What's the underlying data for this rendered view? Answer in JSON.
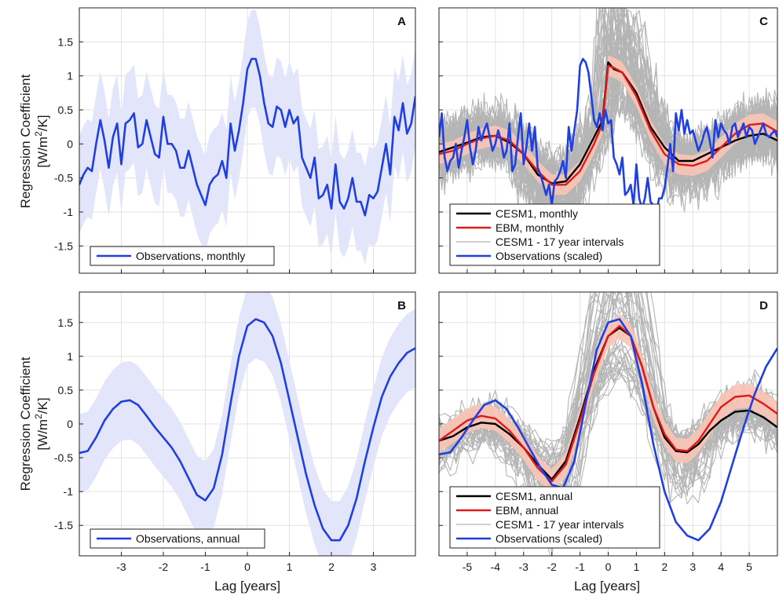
{
  "colors": {
    "observations": "#1f3fe0",
    "observations_band": "#e3e6fb",
    "cesm_mean": "#000000",
    "ebm": "#e01919",
    "ebm_band": "#fac4b6",
    "ensemble": "#b5b5b5",
    "grid": "#e2e2e2",
    "axis": "#222222"
  },
  "shared": {
    "ylabel_line1": "Regression Coefficient",
    "ylabel_line2_pre": "[W/m",
    "ylabel_line2_sup": "2",
    "ylabel_line2_post": "/K]",
    "xlabel": "Lag [years]"
  },
  "chart_data": [
    {
      "panel": "A",
      "type": "line",
      "xlim": [
        -4,
        4
      ],
      "ylim": [
        -1.9,
        2
      ],
      "xticks": [
        -3,
        -2,
        -1,
        0,
        1,
        2,
        3
      ],
      "yticks": [
        -1.5,
        -1,
        -0.5,
        0,
        0.5,
        1,
        1.5
      ],
      "grid": true,
      "legend_position": "bottom-left",
      "show_xticklabels": false,
      "show_yticklabels": true,
      "show_ylabel": true,
      "show_xlabel": false,
      "legend_entries": [
        {
          "label": "Observations, monthly",
          "color": "observations"
        }
      ],
      "observations": {
        "x": [
          -4.0,
          -3.9,
          -3.8,
          -3.7,
          -3.6,
          -3.5,
          -3.4,
          -3.3,
          -3.2,
          -3.1,
          -3.0,
          -2.9,
          -2.8,
          -2.7,
          -2.6,
          -2.5,
          -2.4,
          -2.3,
          -2.2,
          -2.1,
          -2.0,
          -1.9,
          -1.8,
          -1.7,
          -1.6,
          -1.5,
          -1.4,
          -1.3,
          -1.2,
          -1.1,
          -1.0,
          -0.9,
          -0.8,
          -0.7,
          -0.6,
          -0.5,
          -0.4,
          -0.3,
          -0.2,
          -0.1,
          0.0,
          0.1,
          0.2,
          0.3,
          0.4,
          0.5,
          0.6,
          0.7,
          0.8,
          0.9,
          1.0,
          1.1,
          1.2,
          1.3,
          1.4,
          1.5,
          1.6,
          1.7,
          1.8,
          1.9,
          2.0,
          2.1,
          2.2,
          2.3,
          2.4,
          2.5,
          2.6,
          2.7,
          2.8,
          2.9,
          3.0,
          3.1,
          3.2,
          3.3,
          3.4,
          3.5,
          3.6,
          3.7,
          3.8,
          3.9,
          4.0
        ],
        "y": [
          -0.6,
          -0.45,
          -0.35,
          -0.4,
          0.0,
          0.35,
          0.05,
          -0.35,
          0.1,
          0.3,
          -0.3,
          0.3,
          0.35,
          0.45,
          -0.05,
          0.0,
          0.35,
          0.1,
          -0.15,
          -0.2,
          0.4,
          0.0,
          0.0,
          -0.1,
          -0.35,
          -0.35,
          -0.1,
          -0.35,
          -0.6,
          -0.75,
          -0.9,
          -0.6,
          -0.5,
          -0.45,
          -0.25,
          -0.5,
          0.3,
          -0.1,
          0.2,
          0.6,
          1.1,
          1.25,
          1.25,
          1.0,
          0.6,
          0.3,
          0.25,
          0.55,
          0.5,
          0.25,
          0.5,
          0.3,
          0.4,
          -0.2,
          -0.35,
          -0.5,
          -0.2,
          -0.8,
          -0.75,
          -0.6,
          -0.95,
          -0.3,
          -0.85,
          -0.95,
          -0.8,
          -0.5,
          -0.85,
          -0.85,
          -1.05,
          -0.75,
          -0.8,
          -0.7,
          -0.35,
          0.0,
          -0.45,
          0.4,
          0.2,
          0.6,
          0.15,
          0.3,
          0.7
        ]
      },
      "observations_band_halfwidth": 0.72,
      "ebm": null,
      "cesm_mean": null,
      "ensemble": null
    },
    {
      "panel": "B",
      "type": "line",
      "xlim": [
        -4,
        4
      ],
      "ylim": [
        -1.95,
        1.95
      ],
      "xticks": [
        -3,
        -2,
        -1,
        0,
        1,
        2,
        3
      ],
      "yticks": [
        -1.5,
        -1,
        -0.5,
        0,
        0.5,
        1,
        1.5
      ],
      "xticklabels": [
        "-3",
        "-2",
        "-1",
        "0",
        "1",
        "2",
        "3"
      ],
      "grid": true,
      "legend_position": "bottom-left",
      "show_xticklabels": true,
      "show_yticklabels": true,
      "show_ylabel": true,
      "show_xlabel": true,
      "legend_entries": [
        {
          "label": "Observations, annual",
          "color": "observations"
        }
      ],
      "observations": {
        "x": [
          -4.0,
          -3.8,
          -3.6,
          -3.4,
          -3.2,
          -3.0,
          -2.8,
          -2.6,
          -2.4,
          -2.2,
          -2.0,
          -1.8,
          -1.6,
          -1.4,
          -1.2,
          -1.0,
          -0.8,
          -0.6,
          -0.4,
          -0.2,
          0.0,
          0.2,
          0.4,
          0.6,
          0.8,
          1.0,
          1.2,
          1.4,
          1.6,
          1.8,
          2.0,
          2.2,
          2.4,
          2.6,
          2.8,
          3.0,
          3.2,
          3.4,
          3.6,
          3.8,
          4.0
        ],
        "y": [
          -0.43,
          -0.4,
          -0.2,
          0.05,
          0.22,
          0.33,
          0.35,
          0.28,
          0.12,
          -0.05,
          -0.2,
          -0.35,
          -0.55,
          -0.8,
          -1.05,
          -1.13,
          -0.95,
          -0.45,
          0.3,
          1.0,
          1.45,
          1.55,
          1.5,
          1.3,
          0.9,
          0.35,
          -0.2,
          -0.75,
          -1.2,
          -1.55,
          -1.72,
          -1.72,
          -1.5,
          -1.1,
          -0.55,
          -0.05,
          0.4,
          0.7,
          0.9,
          1.05,
          1.12
        ]
      },
      "observations_band_halfwidth": 0.58,
      "ebm": null,
      "cesm_mean": null,
      "ensemble": null
    },
    {
      "panel": "C",
      "type": "line",
      "xlim": [
        -6,
        6
      ],
      "ylim": [
        -1.9,
        2
      ],
      "xticks": [
        -5,
        -4,
        -3,
        -2,
        -1,
        0,
        1,
        2,
        3,
        4,
        5
      ],
      "yticks": [
        -1.5,
        -1,
        -0.5,
        0,
        0.5,
        1,
        1.5
      ],
      "grid": true,
      "legend_position": "bottom-left",
      "show_xticklabels": false,
      "show_yticklabels": false,
      "show_ylabel": false,
      "show_xlabel": false,
      "legend_entries": [
        {
          "label": "CESM1, monthly",
          "color": "cesm_mean"
        },
        {
          "label": "EBM, monthly",
          "color": "ebm"
        },
        {
          "label": "CESM1 - 17 year intervals",
          "color": "ensemble"
        },
        {
          "label": "Observations (scaled)",
          "color": "observations"
        }
      ],
      "cesm_mean": {
        "x": [
          -6.0,
          -5.5,
          -5.0,
          -4.5,
          -4.0,
          -3.5,
          -3.0,
          -2.5,
          -2.0,
          -1.5,
          -1.0,
          -0.5,
          -0.2,
          0.0,
          0.2,
          0.5,
          1.0,
          1.5,
          2.0,
          2.5,
          3.0,
          3.5,
          4.0,
          4.5,
          5.0,
          5.5,
          6.0
        ],
        "y": [
          -0.12,
          -0.05,
          0.02,
          0.1,
          0.12,
          0.02,
          -0.15,
          -0.45,
          -0.58,
          -0.55,
          -0.3,
          0.1,
          0.35,
          1.2,
          1.1,
          1.05,
          0.75,
          0.25,
          -0.05,
          -0.25,
          -0.25,
          -0.15,
          -0.05,
          0.05,
          0.12,
          0.15,
          0.05
        ]
      },
      "ebm": {
        "x": [
          -6.0,
          -5.5,
          -5.0,
          -4.5,
          -4.0,
          -3.5,
          -3.0,
          -2.5,
          -2.0,
          -1.5,
          -1.0,
          -0.5,
          -0.2,
          0.0,
          0.2,
          0.5,
          1.0,
          1.5,
          2.0,
          2.5,
          3.0,
          3.5,
          4.0,
          4.5,
          5.0,
          5.5,
          6.0
        ],
        "y": [
          -0.15,
          -0.1,
          0.0,
          0.08,
          0.12,
          0.05,
          -0.15,
          -0.4,
          -0.6,
          -0.6,
          -0.4,
          0.0,
          0.3,
          1.15,
          1.12,
          1.05,
          0.7,
          0.2,
          -0.15,
          -0.3,
          -0.32,
          -0.25,
          -0.05,
          0.15,
          0.28,
          0.3,
          0.18
        ]
      },
      "ebm_band_halfwidth": 0.15,
      "observations": {
        "x": [
          -6.0,
          -5.9,
          -5.8,
          -5.7,
          -5.6,
          -5.5,
          -5.4,
          -5.3,
          -5.2,
          -5.1,
          -5.0,
          -4.9,
          -4.8,
          -4.7,
          -4.6,
          -4.5,
          -4.4,
          -4.3,
          -4.2,
          -4.1,
          -4.0,
          -3.9,
          -3.8,
          -3.7,
          -3.6,
          -3.5,
          -3.4,
          -3.3,
          -3.2,
          -3.1,
          -3.0,
          -2.9,
          -2.8,
          -2.7,
          -2.6,
          -2.5,
          -2.4,
          -2.3,
          -2.2,
          -2.1,
          -2.0,
          -1.9,
          -1.8,
          -1.7,
          -1.6,
          -1.5,
          -1.4,
          -1.3,
          -1.2,
          -1.1,
          -1.0,
          -0.9,
          -0.8,
          -0.7,
          -0.6,
          -0.5,
          -0.4,
          -0.3,
          -0.2,
          -0.1,
          0.0,
          0.1,
          0.2,
          0.3,
          0.4,
          0.5,
          0.6,
          0.7,
          0.8,
          0.9,
          1.0,
          1.1,
          1.2,
          1.3,
          1.4,
          1.5,
          1.6,
          1.7,
          1.8,
          1.9,
          2.0,
          2.1,
          2.2,
          2.3,
          2.4,
          2.5,
          2.6,
          2.7,
          2.8,
          2.9,
          3.0,
          3.1,
          3.2,
          3.3,
          3.4,
          3.5,
          3.6,
          3.7,
          3.8,
          3.9,
          4.0,
          4.1,
          4.2,
          4.3,
          4.4,
          4.5,
          4.6,
          4.7,
          4.8,
          4.9,
          5.0,
          5.1,
          5.2,
          5.3,
          5.4,
          5.5,
          5.6,
          5.7,
          5.8,
          5.9,
          6.0
        ],
        "y": [
          0.1,
          0.45,
          -0.2,
          -0.4,
          -0.25,
          -0.2,
          0.0,
          -0.35,
          -0.1,
          0.1,
          0.35,
          -0.05,
          -0.3,
          -0.1,
          0.25,
          0.05,
          0.2,
          0.3,
          0.1,
          -0.1,
          0.0,
          0.2,
          0.05,
          -0.2,
          -0.1,
          0.3,
          -0.4,
          -0.3,
          0.1,
          0.45,
          -0.3,
          -0.05,
          0.3,
          -0.1,
          0.25,
          -0.35,
          -0.45,
          -0.6,
          -0.75,
          -0.6,
          -0.9,
          -0.55,
          -0.5,
          -0.4,
          -0.25,
          -0.5,
          0.25,
          -0.1,
          0.2,
          0.5,
          1.15,
          1.25,
          1.2,
          1.05,
          0.7,
          0.35,
          0.25,
          0.45,
          0.2,
          0.5,
          0.3,
          0.35,
          -0.2,
          -0.3,
          -0.45,
          -0.2,
          -0.75,
          -0.7,
          -0.6,
          -0.9,
          -0.3,
          -0.8,
          -0.95,
          -0.8,
          -0.5,
          -0.85,
          -0.9,
          -1.05,
          -0.8,
          -0.8,
          -0.65,
          -0.35,
          0.0,
          -0.4,
          0.45,
          0.2,
          0.5,
          0.15,
          0.35,
          0.15,
          0.2,
          0.05,
          -0.1,
          0.0,
          0.15,
          0.25,
          0.05,
          -0.2,
          0.35,
          0.1,
          0.3,
          0.2,
          0.15,
          0.0,
          0.25,
          0.3,
          0.1,
          0.2,
          0.3,
          0.1,
          0.25,
          0.2,
          0.0,
          0.1,
          0.2,
          0.3,
          0.15,
          0.1,
          0.15,
          0.2,
          0.1
        ]
      },
      "ensemble": {
        "count": 55,
        "amplitude_spread": [
          0.5,
          1.9
        ],
        "peak_value": 1.6,
        "trough_value": -0.7,
        "noise": 0.28,
        "seed": 11
      }
    },
    {
      "panel": "D",
      "type": "line",
      "xlim": [
        -6,
        6
      ],
      "ylim": [
        -1.95,
        1.95
      ],
      "xticks": [
        -5,
        -4,
        -3,
        -2,
        -1,
        0,
        1,
        2,
        3,
        4,
        5
      ],
      "yticks": [
        -1.5,
        -1,
        -0.5,
        0,
        0.5,
        1,
        1.5
      ],
      "xticklabels": [
        "-5",
        "-4",
        "-3",
        "-2",
        "-1",
        "0",
        "1",
        "2",
        "3",
        "4",
        "5"
      ],
      "grid": true,
      "legend_position": "bottom-left",
      "show_xticklabels": true,
      "show_yticklabels": false,
      "show_ylabel": false,
      "show_xlabel": true,
      "legend_entries": [
        {
          "label": "CESM1, annual",
          "color": "cesm_mean"
        },
        {
          "label": "EBM, annual",
          "color": "ebm"
        },
        {
          "label": "CESM1 - 17 year intervals",
          "color": "ensemble"
        },
        {
          "label": "Observations (scaled)",
          "color": "observations"
        }
      ],
      "cesm_mean": {
        "x": [
          -6.0,
          -5.5,
          -5.0,
          -4.5,
          -4.0,
          -3.5,
          -3.0,
          -2.5,
          -2.0,
          -1.5,
          -1.0,
          -0.5,
          0.0,
          0.4,
          0.8,
          1.2,
          1.6,
          2.0,
          2.4,
          2.8,
          3.2,
          3.6,
          4.0,
          4.5,
          5.0,
          5.5,
          6.0
        ],
        "y": [
          -0.25,
          -0.18,
          -0.05,
          0.02,
          0.0,
          -0.15,
          -0.35,
          -0.6,
          -0.82,
          -0.55,
          0.1,
          0.8,
          1.3,
          1.42,
          1.3,
          0.85,
          0.25,
          -0.2,
          -0.4,
          -0.42,
          -0.3,
          -0.1,
          0.05,
          0.18,
          0.2,
          0.1,
          -0.05
        ]
      },
      "ebm": {
        "x": [
          -6.0,
          -5.5,
          -5.0,
          -4.5,
          -4.0,
          -3.5,
          -3.0,
          -2.5,
          -2.0,
          -1.5,
          -1.0,
          -0.5,
          0.0,
          0.4,
          0.8,
          1.2,
          1.6,
          2.0,
          2.4,
          2.8,
          3.2,
          3.6,
          4.0,
          4.5,
          5.0,
          5.5,
          6.0
        ],
        "y": [
          -0.25,
          -0.1,
          0.05,
          0.12,
          0.08,
          -0.1,
          -0.35,
          -0.65,
          -0.85,
          -0.6,
          0.05,
          0.75,
          1.3,
          1.45,
          1.3,
          0.85,
          0.25,
          -0.15,
          -0.38,
          -0.4,
          -0.25,
          0.0,
          0.25,
          0.4,
          0.42,
          0.3,
          0.15
        ]
      },
      "ebm_band_halfwidth": 0.18,
      "observations": {
        "x": [
          -6.0,
          -5.6,
          -5.2,
          -4.8,
          -4.4,
          -4.0,
          -3.6,
          -3.2,
          -2.8,
          -2.4,
          -2.0,
          -1.6,
          -1.2,
          -0.8,
          -0.4,
          0.0,
          0.4,
          0.8,
          1.2,
          1.6,
          2.0,
          2.4,
          2.8,
          3.2,
          3.6,
          4.0,
          4.4,
          4.8,
          5.2,
          5.6,
          6.0
        ],
        "y": [
          -0.45,
          -0.42,
          -0.2,
          0.05,
          0.28,
          0.35,
          0.22,
          -0.05,
          -0.35,
          -0.65,
          -0.9,
          -0.95,
          -0.55,
          0.3,
          1.1,
          1.5,
          1.55,
          1.3,
          0.6,
          -0.3,
          -1.0,
          -1.45,
          -1.65,
          -1.72,
          -1.55,
          -1.15,
          -0.6,
          -0.05,
          0.45,
          0.85,
          1.12
        ]
      },
      "ensemble": {
        "count": 45,
        "amplitude_spread": [
          0.5,
          2.0
        ],
        "peak_value": 1.6,
        "trough_value": -0.8,
        "noise": 0.18,
        "seed": 29
      }
    }
  ]
}
